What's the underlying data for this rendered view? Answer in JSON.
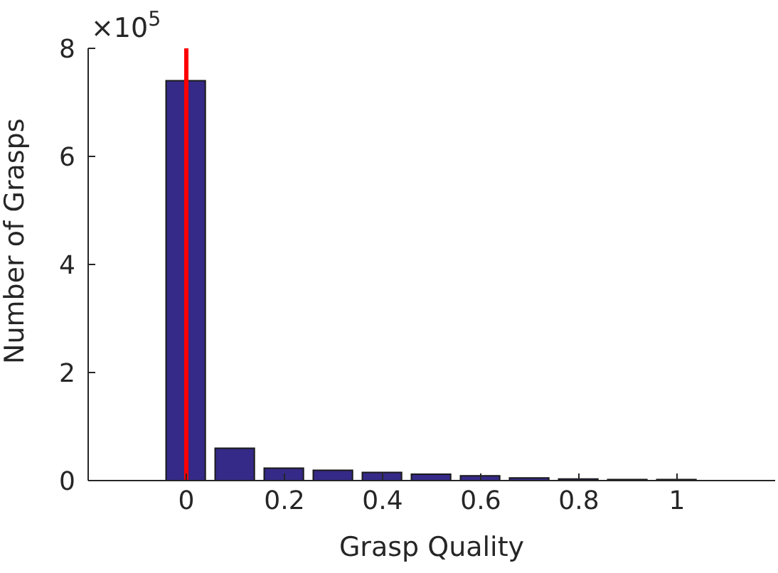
{
  "chart_data": {
    "type": "bar",
    "xlabel": "Grasp Quality",
    "ylabel": "Number of Grasps",
    "x": [
      0,
      0.1,
      0.2,
      0.3,
      0.4,
      0.5,
      0.6,
      0.7,
      0.8,
      0.9,
      1
    ],
    "values": [
      7.4,
      0.6,
      0.23,
      0.19,
      0.15,
      0.12,
      0.09,
      0.05,
      0.03,
      0.02,
      0.02
    ],
    "color": "#352a87",
    "xlim": [
      -0.2,
      1.2
    ],
    "xticks": [
      0,
      0.2,
      0.4,
      0.6,
      0.8,
      1
    ],
    "ylim": [
      0,
      8
    ],
    "yticks": [
      0,
      2,
      4,
      6,
      8
    ],
    "annotations": [
      "×10$^{5}$"
    ],
    "ref_lines": [
      {
        "axis": "x",
        "value": 0,
        "color": "#ff0000"
      }
    ],
    "grid": false
  }
}
